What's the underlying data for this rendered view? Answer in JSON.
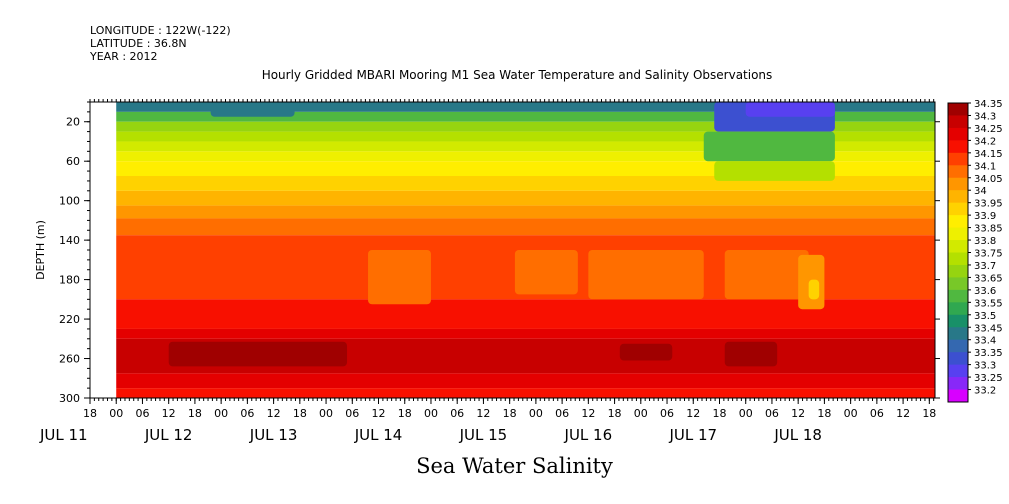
{
  "meta": {
    "longitude": "LONGITUDE : 122W(-122)",
    "latitude": "LATITUDE : 36.8N",
    "year": "YEAR : 2012"
  },
  "chart_data": {
    "type": "heatmap",
    "title": "Hourly Gridded MBARI Mooring M1 Sea Water Temperature and Salinity Observations",
    "footer": "Sea Water Salinity",
    "ylabel": "DEPTH (m)",
    "ylim": [
      300,
      0
    ],
    "yticks": [
      "20",
      "60",
      "100",
      "140",
      "180",
      "220",
      "260",
      "300"
    ],
    "ytick_values": [
      20,
      60,
      100,
      140,
      180,
      220,
      260,
      300
    ],
    "x_hour_labels": [
      "18",
      "00",
      "06",
      "12",
      "18",
      "00",
      "06",
      "12",
      "18",
      "00",
      "06",
      "12",
      "18",
      "00",
      "06",
      "12",
      "18",
      "00",
      "06",
      "12",
      "18",
      "00",
      "06",
      "12",
      "18",
      "00",
      "06",
      "12",
      "18",
      "00",
      "06",
      "12",
      "18"
    ],
    "x_day_labels": [
      "JUL 11",
      "JUL 12",
      "JUL 13",
      "JUL 14",
      "JUL 15",
      "JUL 16",
      "JUL 17",
      "JUL 18"
    ],
    "data_start": "JUL 12 00",
    "colorbar_labels": [
      "34.35",
      "34.3",
      "34.25",
      "34.2",
      "34.15",
      "34.1",
      "34.05",
      "34",
      "33.95",
      "33.9",
      "33.85",
      "33.8",
      "33.75",
      "33.7",
      "33.65",
      "33.6",
      "33.55",
      "33.5",
      "33.45",
      "33.4",
      "33.35",
      "33.3",
      "33.25",
      "33.2"
    ],
    "colorbar_colors": [
      "#a00000",
      "#c80000",
      "#e40000",
      "#f81000",
      "#ff4000",
      "#ff6e00",
      "#ff9600",
      "#ffb400",
      "#ffd200",
      "#ffee00",
      "#eef000",
      "#d2ea00",
      "#b4e000",
      "#96d410",
      "#78c828",
      "#50b840",
      "#30a850",
      "#189068",
      "#287888",
      "#3468b0",
      "#3c50d0",
      "#5840f0",
      "#8828f8",
      "#d800ff"
    ],
    "depth_bands": [
      {
        "top": 0,
        "bottom": 10,
        "value": 33.45
      },
      {
        "top": 10,
        "bottom": 20,
        "value": 33.6
      },
      {
        "top": 20,
        "bottom": 30,
        "value": 33.7
      },
      {
        "top": 30,
        "bottom": 40,
        "value": 33.75
      },
      {
        "top": 40,
        "bottom": 50,
        "value": 33.8
      },
      {
        "top": 50,
        "bottom": 60,
        "value": 33.85
      },
      {
        "top": 60,
        "bottom": 75,
        "value": 33.9
      },
      {
        "top": 75,
        "bottom": 90,
        "value": 33.95
      },
      {
        "top": 90,
        "bottom": 105,
        "value": 34
      },
      {
        "top": 105,
        "bottom": 118,
        "value": 34.05
      },
      {
        "top": 118,
        "bottom": 135,
        "value": 34.1
      },
      {
        "top": 135,
        "bottom": 200,
        "value": 34.15
      },
      {
        "top": 200,
        "bottom": 230,
        "value": 34.2
      },
      {
        "top": 230,
        "bottom": 240,
        "value": 34.25
      },
      {
        "top": 240,
        "bottom": 275,
        "value": 34.3
      },
      {
        "top": 275,
        "bottom": 290,
        "value": 34.25
      },
      {
        "top": 290,
        "bottom": 300,
        "value": 34.2
      }
    ],
    "features": [
      {
        "day_start": 0.9,
        "day_end": 1.7,
        "depth_top": 0,
        "depth_bottom": 15,
        "value": 33.45
      },
      {
        "day_start": 5.7,
        "day_end": 6.85,
        "depth_top": 0,
        "depth_bottom": 30,
        "value": 33.35
      },
      {
        "day_start": 6.0,
        "day_end": 6.85,
        "depth_top": 0,
        "depth_bottom": 15,
        "value": 33.3
      },
      {
        "day_start": 5.6,
        "day_end": 6.85,
        "depth_top": 30,
        "depth_bottom": 60,
        "value": 33.6
      },
      {
        "day_start": 5.7,
        "day_end": 6.85,
        "depth_top": 60,
        "depth_bottom": 80,
        "value": 33.75
      },
      {
        "day_start": 2.4,
        "day_end": 3.0,
        "depth_top": 150,
        "depth_bottom": 205,
        "value": 34.1
      },
      {
        "day_start": 3.8,
        "day_end": 4.4,
        "depth_top": 150,
        "depth_bottom": 195,
        "value": 34.1
      },
      {
        "day_start": 4.5,
        "day_end": 5.6,
        "depth_top": 150,
        "depth_bottom": 200,
        "value": 34.1
      },
      {
        "day_start": 5.8,
        "day_end": 6.6,
        "depth_top": 150,
        "depth_bottom": 200,
        "value": 34.1
      },
      {
        "day_start": 6.5,
        "day_end": 6.75,
        "depth_top": 155,
        "depth_bottom": 210,
        "value": 34.05
      },
      {
        "day_start": 6.6,
        "day_end": 6.7,
        "depth_top": 180,
        "depth_bottom": 200,
        "value": 33.95
      },
      {
        "day_start": 0.5,
        "day_end": 2.2,
        "depth_top": 243,
        "depth_bottom": 268,
        "value": 34.35
      },
      {
        "day_start": 4.8,
        "day_end": 5.3,
        "depth_top": 245,
        "depth_bottom": 262,
        "value": 34.35
      },
      {
        "day_start": 5.8,
        "day_end": 6.3,
        "depth_top": 243,
        "depth_bottom": 268,
        "value": 34.35
      }
    ]
  }
}
